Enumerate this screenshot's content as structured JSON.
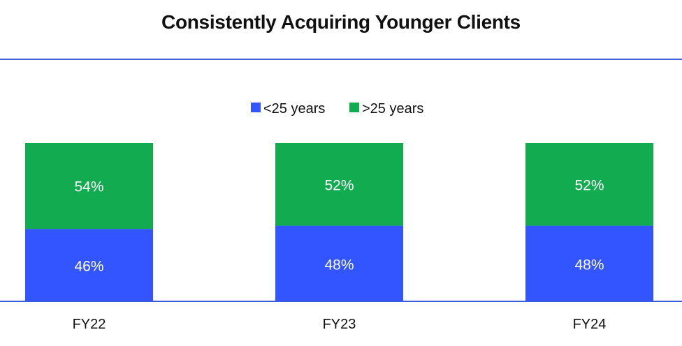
{
  "chart_data": {
    "type": "bar",
    "stacked": true,
    "percent_stacked": true,
    "title": "Consistently Acquiring Younger Clients",
    "categories": [
      "FY22",
      "FY23",
      "FY24"
    ],
    "series": [
      {
        "name": "<25 years",
        "values": [
          46,
          48,
          48
        ],
        "labels": [
          "46%",
          "48%",
          "48%"
        ],
        "color": "#3355ff"
      },
      {
        "name": ">25 years",
        "values": [
          54,
          52,
          52
        ],
        "labels": [
          "54%",
          "52%",
          "52%"
        ],
        "color": "#12ab4f"
      }
    ],
    "ylim": [
      0,
      100
    ],
    "legend_position": "top-center",
    "grid": false,
    "rule_color": "#3f5bd8"
  }
}
